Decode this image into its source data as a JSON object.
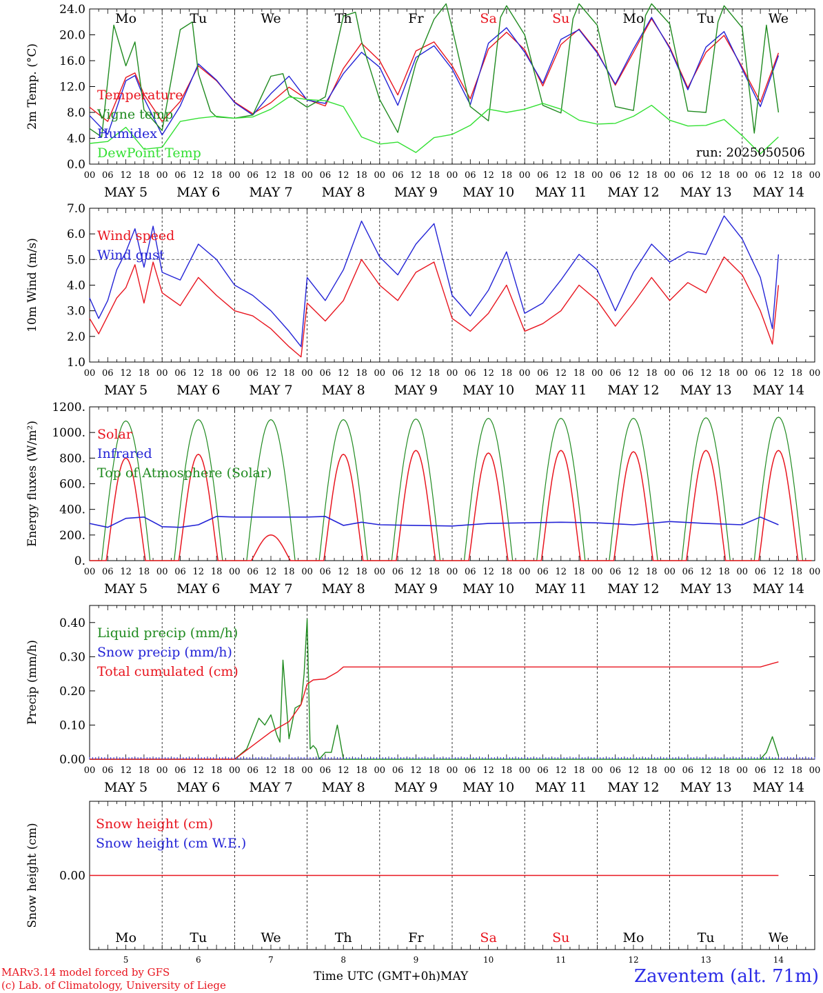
{
  "chart_data": [
    {
      "id": "temperature",
      "type": "line",
      "ylabel": "2m Temp. (°C)",
      "ylim": [
        0,
        24
      ],
      "yticks": [
        "0.0",
        "4.0",
        "8.0",
        "12.0",
        "16.0",
        "20.0",
        "24.0"
      ],
      "x_unit": "hours since May 5 00 UTC",
      "annotation": "run: 2025050506",
      "legend": [
        "Temperature",
        "Vigne temp",
        "Humidex",
        "DewPoint Temp"
      ],
      "series": [
        {
          "name": "Temperature",
          "color": "#e8141e",
          "x": [
            0,
            6,
            12,
            15,
            18,
            24,
            30,
            36,
            42,
            48,
            54,
            60,
            66,
            72,
            78,
            84,
            90,
            96,
            102,
            108,
            114,
            120,
            126,
            132,
            138,
            144,
            150,
            156,
            162,
            168,
            174,
            180,
            186,
            192,
            198,
            204,
            210,
            216,
            222,
            228
          ],
          "values": [
            8.8,
            6.6,
            13.4,
            14.1,
            10.8,
            6.6,
            9.7,
            15.2,
            12.9,
            9.6,
            7.8,
            9.5,
            11.9,
            10.0,
            9.0,
            14.8,
            18.7,
            16.0,
            10.7,
            17.5,
            18.9,
            15.2,
            10.1,
            17.8,
            20.4,
            17.7,
            12.1,
            18.5,
            20.9,
            17.4,
            12.2,
            17.3,
            22.5,
            18.1,
            11.8,
            17.3,
            19.9,
            15.0,
            9.6,
            17.2
          ]
        },
        {
          "name": "Humidex",
          "color": "#2323d6",
          "x": [
            0,
            6,
            12,
            15,
            18,
            24,
            30,
            36,
            42,
            48,
            54,
            60,
            66,
            72,
            78,
            84,
            90,
            96,
            102,
            108,
            114,
            120,
            126,
            132,
            138,
            144,
            150,
            156,
            162,
            168,
            174,
            180,
            186,
            192,
            198,
            204,
            210,
            216,
            222,
            228
          ],
          "values": [
            7.5,
            4.6,
            12.9,
            13.7,
            10.2,
            4.5,
            9.0,
            15.5,
            13.0,
            9.5,
            7.6,
            10.9,
            13.6,
            9.9,
            9.4,
            14.0,
            17.3,
            15.0,
            9.1,
            16.5,
            18.3,
            14.7,
            9.2,
            18.7,
            21.1,
            17.3,
            12.5,
            19.3,
            20.8,
            17.2,
            12.4,
            17.8,
            22.7,
            17.9,
            11.5,
            18.1,
            20.5,
            14.7,
            8.9,
            16.8
          ]
        },
        {
          "name": "Vigne temp",
          "color": "#1f8a1f",
          "x": [
            0,
            4,
            8,
            12,
            15,
            18,
            24,
            30,
            34,
            36,
            40,
            42,
            48,
            54,
            60,
            64,
            66,
            72,
            78,
            84,
            88,
            90,
            96,
            102,
            108,
            114,
            118,
            120,
            126,
            132,
            136,
            138,
            144,
            150,
            156,
            160,
            162,
            168,
            174,
            180,
            184,
            186,
            192,
            198,
            204,
            208,
            210,
            216,
            220,
            224,
            228
          ],
          "values": [
            5.5,
            4.2,
            21.5,
            15.2,
            18.9,
            8.4,
            5.2,
            20.8,
            22.0,
            14.0,
            8.2,
            7.3,
            7.1,
            7.6,
            13.6,
            14.0,
            10.7,
            8.8,
            10.4,
            22.9,
            23.5,
            19.0,
            10.0,
            4.9,
            15.6,
            22.4,
            24.8,
            21.0,
            8.9,
            6.7,
            22.7,
            24.5,
            20.0,
            9.1,
            7.9,
            22.5,
            24.8,
            21.5,
            8.9,
            8.3,
            23.0,
            24.8,
            21.7,
            8.2,
            8.0,
            22.0,
            24.5,
            21.1,
            4.8,
            21.5,
            8.0
          ]
        },
        {
          "name": "DewPoint Temp",
          "color": "#33e033",
          "x": [
            0,
            6,
            12,
            18,
            24,
            30,
            36,
            42,
            48,
            54,
            60,
            66,
            72,
            78,
            84,
            90,
            96,
            102,
            108,
            114,
            120,
            126,
            132,
            138,
            144,
            150,
            156,
            162,
            168,
            174,
            180,
            186,
            192,
            198,
            204,
            210,
            216,
            222,
            228
          ],
          "values": [
            3.2,
            3.5,
            5.7,
            2.3,
            2.6,
            6.6,
            7.1,
            7.4,
            7.1,
            7.3,
            8.5,
            10.4,
            10.0,
            9.8,
            8.9,
            4.2,
            3.1,
            3.4,
            1.8,
            4.1,
            4.6,
            6.0,
            8.5,
            8.0,
            8.5,
            9.4,
            8.5,
            6.8,
            6.2,
            6.3,
            7.4,
            9.1,
            6.8,
            5.9,
            6.0,
            6.9,
            4.4,
            1.6,
            4.2
          ]
        }
      ]
    },
    {
      "id": "wind",
      "type": "line",
      "ylabel": "10m Wind (m/s)",
      "ylim": [
        1,
        7
      ],
      "yticks": [
        "1.0",
        "2.0",
        "3.0",
        "4.0",
        "5.0",
        "6.0",
        "7.0"
      ],
      "hline": 5.0,
      "legend": [
        "Wind speed",
        "Wind gust"
      ],
      "series": [
        {
          "name": "Wind speed",
          "color": "#e8141e",
          "x": [
            0,
            3,
            6,
            9,
            12,
            15,
            18,
            21,
            24,
            30,
            36,
            42,
            48,
            54,
            60,
            66,
            70,
            72,
            78,
            84,
            90,
            96,
            102,
            108,
            114,
            120,
            126,
            132,
            138,
            144,
            150,
            156,
            162,
            168,
            174,
            180,
            186,
            192,
            198,
            204,
            210,
            216,
            222,
            226,
            228
          ],
          "values": [
            2.7,
            2.1,
            2.8,
            3.5,
            3.9,
            4.8,
            3.3,
            4.9,
            3.7,
            3.2,
            4.3,
            3.6,
            3.0,
            2.8,
            2.3,
            1.6,
            1.2,
            3.3,
            2.6,
            3.4,
            5.0,
            4.0,
            3.4,
            4.5,
            4.9,
            2.7,
            2.2,
            2.9,
            4.0,
            2.2,
            2.5,
            3.0,
            4.0,
            3.4,
            2.4,
            3.3,
            4.3,
            3.4,
            4.1,
            3.7,
            5.1,
            4.4,
            3.0,
            1.7,
            4.0
          ]
        },
        {
          "name": "Wind gust",
          "color": "#2323d6",
          "x": [
            0,
            3,
            6,
            9,
            12,
            15,
            18,
            21,
            24,
            30,
            36,
            42,
            48,
            54,
            60,
            66,
            70,
            72,
            78,
            84,
            90,
            96,
            102,
            108,
            114,
            120,
            126,
            132,
            138,
            144,
            150,
            156,
            162,
            168,
            174,
            180,
            186,
            192,
            198,
            204,
            210,
            216,
            222,
            226,
            228
          ],
          "values": [
            3.5,
            2.7,
            3.4,
            4.6,
            5.3,
            6.2,
            4.7,
            6.3,
            4.5,
            4.2,
            5.6,
            5.0,
            4.0,
            3.6,
            3.0,
            2.2,
            1.6,
            4.3,
            3.4,
            4.6,
            6.5,
            5.1,
            4.4,
            5.6,
            6.4,
            3.6,
            2.8,
            3.8,
            5.3,
            2.9,
            3.3,
            4.2,
            5.2,
            4.6,
            3.0,
            4.5,
            5.6,
            4.9,
            5.3,
            5.2,
            6.7,
            5.8,
            4.3,
            2.3,
            5.2
          ]
        }
      ]
    },
    {
      "id": "energy",
      "type": "line",
      "ylabel": "Energy fluxes (W/m²)",
      "ylim": [
        0,
        1200
      ],
      "yticks": [
        "0.",
        "200.",
        "400.",
        "600.",
        "800.",
        "1000.",
        "1200."
      ],
      "legend": [
        "Solar",
        "Infrared",
        "Top of Atmosphere (Solar)"
      ],
      "daily_peaks_toa": [
        1090,
        1100,
        1100,
        1100,
        1105,
        1110,
        1110,
        1110,
        1115,
        1120
      ],
      "daily_peaks_solar": [
        800,
        830,
        200,
        830,
        860,
        840,
        860,
        850,
        860,
        860
      ],
      "series": [
        {
          "name": "Infrared",
          "color": "#2323d6",
          "x": [
            0,
            6,
            12,
            18,
            24,
            30,
            36,
            42,
            48,
            54,
            60,
            66,
            72,
            78,
            84,
            90,
            96,
            108,
            120,
            132,
            144,
            156,
            168,
            180,
            192,
            204,
            216,
            222,
            228
          ],
          "values": [
            290,
            260,
            330,
            340,
            265,
            260,
            280,
            345,
            340,
            340,
            340,
            340,
            340,
            345,
            275,
            300,
            280,
            275,
            270,
            290,
            295,
            300,
            295,
            280,
            305,
            290,
            280,
            340,
            280
          ]
        }
      ]
    },
    {
      "id": "precip",
      "type": "line",
      "ylabel": "Precip (mm/h)",
      "ylim": [
        0,
        0.45
      ],
      "yticks": [
        "0.00",
        "0.10",
        "0.20",
        "0.30",
        "0.40"
      ],
      "legend": [
        "Liquid precip (mm/h)",
        "Snow precip (mm/h)",
        "Total cumulated (cm)"
      ],
      "series": [
        {
          "name": "Liquid precip (mm/h)",
          "color": "#1f8a1f",
          "x": [
            0,
            48,
            52,
            56,
            58,
            60,
            62,
            63,
            64,
            66,
            68,
            70,
            71,
            72,
            73,
            74,
            75,
            76,
            78,
            80,
            82,
            84,
            86,
            88,
            90,
            228
          ],
          "values": [
            0,
            0,
            0.03,
            0.12,
            0.1,
            0.13,
            0.07,
            0.05,
            0.29,
            0.06,
            0.15,
            0.16,
            0.25,
            0.41,
            0.03,
            0.04,
            0.03,
            0.0,
            0.02,
            0.02,
            0.1,
            0.0,
            0.0,
            0.0,
            0,
            0
          ],
          "tail_x": [
            222,
            224,
            226,
            228
          ],
          "tail_values": [
            0,
            0.02,
            0.066,
            0.01
          ]
        },
        {
          "name": "Total cumulated (cm)",
          "color": "#e8141e",
          "x": [
            0,
            48,
            54,
            60,
            66,
            70,
            72,
            74,
            78,
            82,
            84,
            86,
            90,
            222,
            226,
            228
          ],
          "values": [
            0,
            0,
            0.04,
            0.08,
            0.11,
            0.16,
            0.22,
            0.232,
            0.235,
            0.255,
            0.27,
            0.27,
            0.27,
            0.27,
            0.28,
            0.285
          ]
        }
      ]
    },
    {
      "id": "snow",
      "type": "line",
      "ylabel": "Snow height (cm)",
      "ylim": [
        -1,
        1
      ],
      "yticks": [
        "0.00"
      ],
      "legend": [
        "Snow height (cm)",
        "Snow height (cm W.E.)"
      ],
      "series": [
        {
          "name": "Snow height (cm)",
          "color": "#e8141e",
          "x": [
            0,
            228
          ],
          "values": [
            0,
            0
          ]
        }
      ]
    }
  ],
  "days": [
    {
      "abbr": "Mo",
      "date": "MAY  5",
      "num": "5",
      "weekend": false
    },
    {
      "abbr": "Tu",
      "date": "MAY  6",
      "num": "6",
      "weekend": false
    },
    {
      "abbr": "We",
      "date": "MAY  7",
      "num": "7",
      "weekend": false
    },
    {
      "abbr": "Th",
      "date": "MAY  8",
      "num": "8",
      "weekend": false
    },
    {
      "abbr": "Fr",
      "date": "MAY  9",
      "num": "9",
      "weekend": false
    },
    {
      "abbr": "Sa",
      "date": "MAY 10",
      "num": "10",
      "weekend": true
    },
    {
      "abbr": "Su",
      "date": "MAY 11",
      "num": "11",
      "weekend": true
    },
    {
      "abbr": "Mo",
      "date": "MAY 12",
      "num": "12",
      "weekend": false
    },
    {
      "abbr": "Tu",
      "date": "MAY 13",
      "num": "13",
      "weekend": false
    },
    {
      "abbr": "We",
      "date": "MAY 14",
      "num": "14",
      "weekend": false
    }
  ],
  "hour_ticks": [
    "00",
    "06",
    "12",
    "18"
  ],
  "final_hour_tick": "00",
  "footer": {
    "model_line": "MARv3.14 model forced by GFS",
    "credit_line": "(c) Lab. of Climatology, University of Liege",
    "x_axis_label": "Time UTC (GMT+0h)MAY",
    "station": "Zaventem (alt. 71m)"
  },
  "colors": {
    "red": "#e8141e",
    "blue": "#2323d6",
    "green": "#1f8a1f",
    "light_green": "#33e033",
    "weekend": "#e8141e"
  }
}
